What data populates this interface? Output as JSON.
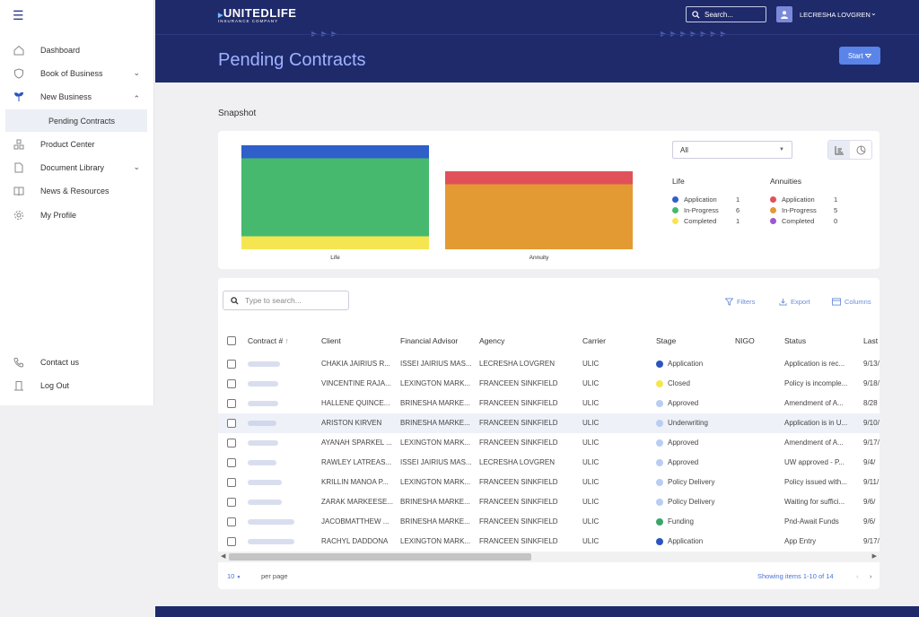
{
  "sidebar": {
    "menu_icon": "hamburger-icon",
    "items": [
      {
        "label": "Dashboard",
        "icon": "home-icon"
      },
      {
        "label": "Book of Business",
        "icon": "shield-icon"
      },
      {
        "label": "New Business",
        "icon": "sprout-icon"
      },
      {
        "label": "Product Center",
        "icon": "boxes-icon"
      },
      {
        "label": "Document Library",
        "icon": "document-icon"
      },
      {
        "label": "News & Resources",
        "icon": "book-icon"
      },
      {
        "label": "My Profile",
        "icon": "gear-icon"
      }
    ],
    "sub_item": "Pending Contracts",
    "bottom": [
      {
        "label": "Contact us",
        "icon": "phone-icon"
      },
      {
        "label": "Log Out",
        "icon": "logout-icon"
      }
    ]
  },
  "header": {
    "logo_main": "UNITEDLIFE",
    "logo_sub": "INSURANCE COMPANY",
    "search_label": "Search...",
    "user_name": "LECRESHA LOVGREN",
    "page_title": "Pending Contracts",
    "start_label": "Start"
  },
  "snapshot": {
    "title": "Snapshot",
    "filter_value": "All",
    "chart_data": {
      "type": "bar",
      "stacked": true,
      "categories": [
        "Life",
        "Annuity"
      ],
      "series": [
        {
          "name": "Application",
          "values": [
            1,
            1
          ],
          "colors": [
            "#2f5fc8",
            "#e0515a"
          ]
        },
        {
          "name": "In-Progress",
          "values": [
            6,
            5
          ],
          "colors": [
            "#46b96f",
            "#e39a33"
          ]
        },
        {
          "name": "Completed",
          "values": [
            1,
            0
          ],
          "colors": [
            "#f5e651",
            "#9b59d0"
          ]
        }
      ]
    },
    "legend": {
      "life": {
        "title": "Life",
        "rows": [
          {
            "label": "Application",
            "count": "1",
            "color": "#2f5fc8"
          },
          {
            "label": "In-Progress",
            "count": "6",
            "color": "#46b96f"
          },
          {
            "label": "Completed",
            "count": "1",
            "color": "#f5e651"
          }
        ]
      },
      "annuities": {
        "title": "Annuities",
        "rows": [
          {
            "label": "Application",
            "count": "1",
            "color": "#e0515a"
          },
          {
            "label": "In-Progress",
            "count": "5",
            "color": "#e39a33"
          },
          {
            "label": "Completed",
            "count": "0",
            "color": "#9b59d0"
          }
        ]
      }
    }
  },
  "table": {
    "search_placeholder": "Type to search...",
    "filters_label": "Filters",
    "export_label": "Export",
    "columns_label": "Columns",
    "headers": [
      "Contract #",
      "Client",
      "Financial Advisor",
      "Agency",
      "Carrier",
      "Stage",
      "NIGO",
      "Status",
      "Last"
    ],
    "stage_colors": {
      "Application": "#2a55c0",
      "Closed": "#f5e651",
      "Approved": "#b8cdf3",
      "Underwriting": "#b8cdf3",
      "Policy Delivery": "#b8cdf3",
      "Funding": "#3aa66a"
    },
    "rows": [
      {
        "client": "CHAKIA JAIRIUS R...",
        "advisor": "ISSEI JAIRIUS MAS...",
        "agency": "LECRESHA LOVGREN",
        "carrier": "ULIC",
        "stage": "Application",
        "nigo": "",
        "status": "Application is rec...",
        "last": "9/13/"
      },
      {
        "client": "VINCENTINE RAJA...",
        "advisor": "LEXINGTON MARK...",
        "agency": "FRANCEEN SINKFIELD",
        "carrier": "ULIC",
        "stage": "Closed",
        "nigo": "",
        "status": "Policy is incomple...",
        "last": "9/18/"
      },
      {
        "client": "HALLENE QUINCE...",
        "advisor": "BRINESHA MARKE...",
        "agency": "FRANCEEN SINKFIELD",
        "carrier": "ULIC",
        "stage": "Approved",
        "nigo": "",
        "status": "Amendment of A...",
        "last": "8/28"
      },
      {
        "client": "ARISTON KIRVEN",
        "advisor": "BRINESHA MARKE...",
        "agency": "FRANCEEN SINKFIELD",
        "carrier": "ULIC",
        "stage": "Underwriting",
        "nigo": "",
        "status": "Application is in U...",
        "last": "9/10/"
      },
      {
        "client": "AYANAH SPARKEL ...",
        "advisor": "LEXINGTON MARK...",
        "agency": "FRANCEEN SINKFIELD",
        "carrier": "ULIC",
        "stage": "Approved",
        "nigo": "",
        "status": "Amendment of A...",
        "last": "9/17/"
      },
      {
        "client": "RAWLEY LATREAS...",
        "advisor": "ISSEI JAIRIUS MAS...",
        "agency": "LECRESHA LOVGREN",
        "carrier": "ULIC",
        "stage": "Approved",
        "nigo": "",
        "status": "UW approved - P...",
        "last": "9/4/"
      },
      {
        "client": "KRILLIN MANOA P...",
        "advisor": "LEXINGTON MARK...",
        "agency": "FRANCEEN SINKFIELD",
        "carrier": "ULIC",
        "stage": "Policy Delivery",
        "nigo": "",
        "status": "Policy issued with...",
        "last": "9/11/"
      },
      {
        "client": "ZARAK MARKEESE...",
        "advisor": "BRINESHA MARKE...",
        "agency": "FRANCEEN SINKFIELD",
        "carrier": "ULIC",
        "stage": "Policy Delivery",
        "nigo": "",
        "status": "Waiting for suffici...",
        "last": "9/6/"
      },
      {
        "client": "JACOBMATTHEW ...",
        "advisor": "BRINESHA MARKE...",
        "agency": "FRANCEEN SINKFIELD",
        "carrier": "ULIC",
        "stage": "Funding",
        "nigo": "",
        "status": "Pnd-Await Funds",
        "last": "9/6/"
      },
      {
        "client": "RACHYL DADDONA",
        "advisor": "LEXINGTON MARK...",
        "agency": "FRANCEEN SINKFIELD",
        "carrier": "ULIC",
        "stage": "Application",
        "nigo": "",
        "status": "App Entry",
        "last": "9/17/"
      }
    ],
    "per_page_value": "10",
    "per_page_label": "per page",
    "showing_text": "Showing items 1-10 of 14"
  }
}
